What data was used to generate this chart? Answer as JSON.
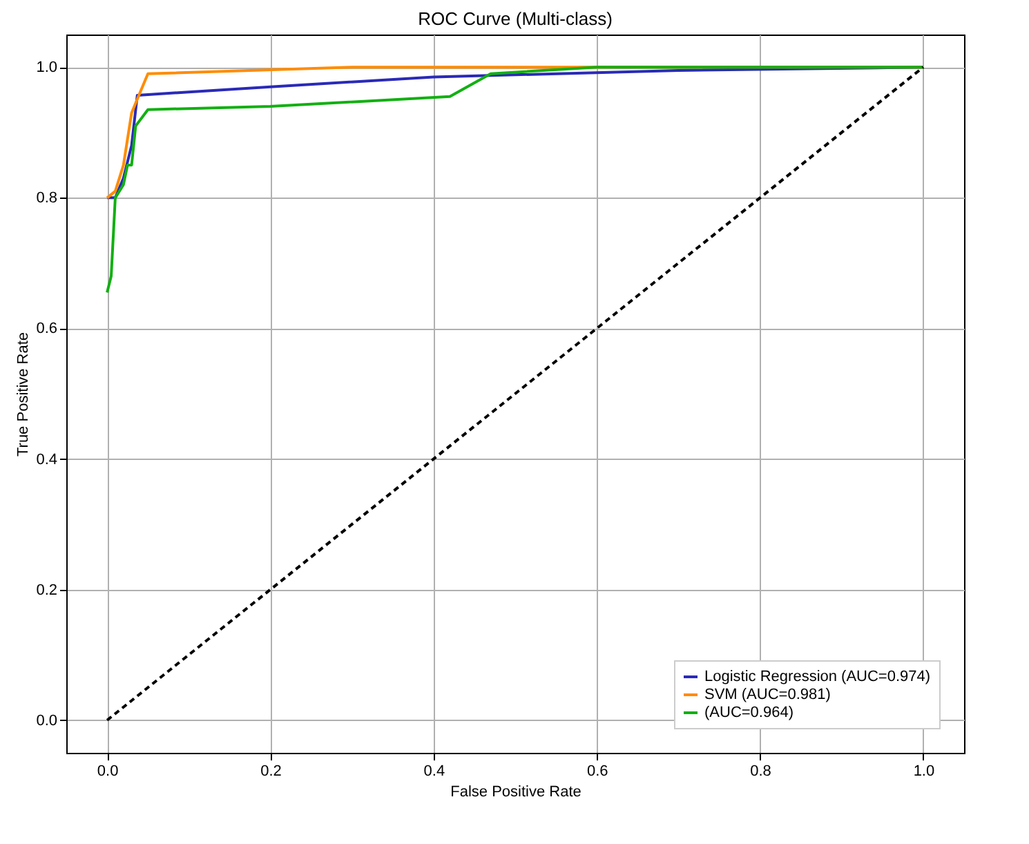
{
  "chart_data": {
    "type": "line",
    "title": "ROC Curve (Multi-class)",
    "xlabel": "False Positive Rate",
    "ylabel": "True Positive Rate",
    "xlim": [
      -0.05,
      1.05
    ],
    "ylim": [
      -0.05,
      1.05
    ],
    "xticks": [
      {
        "value": 0,
        "label": "0.0"
      },
      0.2,
      0.4,
      0.6,
      0.8,
      {
        "value": 1,
        "label": "1.0"
      }
    ],
    "yticks": [
      {
        "value": 0,
        "label": "0.0"
      },
      0.2,
      0.4,
      0.6,
      0.8,
      {
        "value": 1,
        "label": "1.0"
      }
    ],
    "grid": true,
    "legend": "bottom right",
    "series": [
      {
        "name": "Logistic Regression (AUC=0.974)",
        "color": "#2a2ab8",
        "x": [
          0,
          0.01,
          0.02,
          0.03,
          0.037,
          0.1,
          0.2,
          0.4,
          0.7,
          1.0
        ],
        "values": [
          0.8,
          0.8,
          0.83,
          0.88,
          0.957,
          0.962,
          0.97,
          0.985,
          0.995,
          1.0
        ]
      },
      {
        "name": "SVM (AUC=0.981)",
        "color": "#ff8c00",
        "x": [
          0,
          0.01,
          0.02,
          0.03,
          0.04,
          0.05,
          0.3,
          1.0
        ],
        "values": [
          0.8,
          0.81,
          0.85,
          0.93,
          0.96,
          0.99,
          1.0,
          1.0
        ]
      },
      {
        "name": "(AUC=0.964)",
        "color": "#12b012",
        "x": [
          0,
          0.005,
          0.01,
          0.02,
          0.025,
          0.03,
          0.035,
          0.05,
          0.2,
          0.42,
          0.47,
          0.6,
          1.0
        ],
        "values": [
          0.655,
          0.68,
          0.8,
          0.82,
          0.85,
          0.85,
          0.91,
          0.935,
          0.94,
          0.955,
          0.99,
          1.0,
          1.0
        ]
      },
      {
        "color": "#000000",
        "line_style": "dashed",
        "x": [
          0,
          1
        ],
        "values": [
          0,
          1
        ]
      }
    ]
  }
}
